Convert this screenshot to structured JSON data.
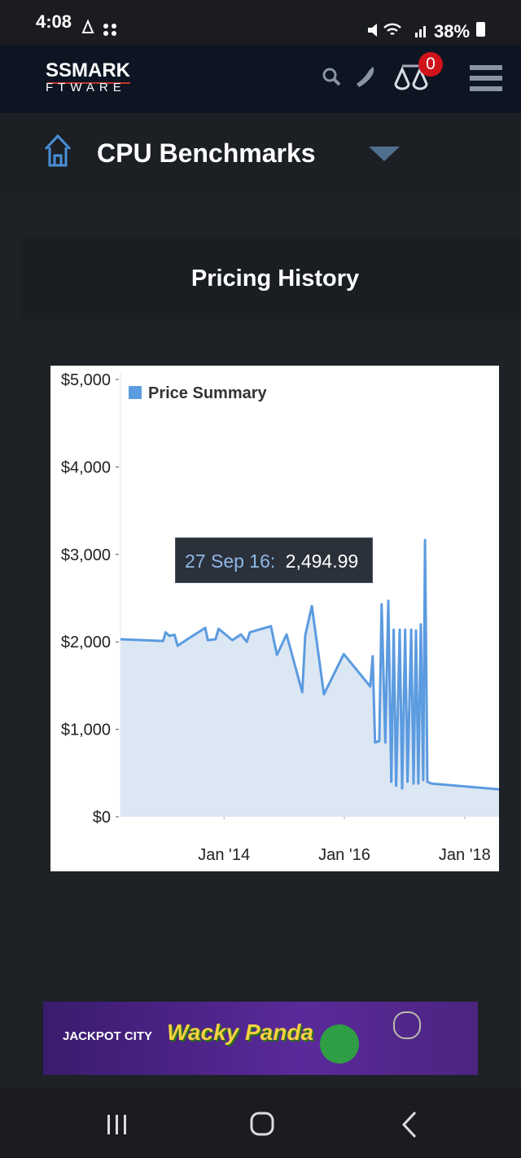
{
  "status": {
    "time": "4:08",
    "battery": "38%"
  },
  "header": {
    "logo_top": "SSMARK",
    "logo_bottom": "FTWARE",
    "cart_count": "0"
  },
  "nav": {
    "title": "CPU Benchmarks"
  },
  "section": {
    "title": "Pricing History"
  },
  "tooltip": {
    "date": "27 Sep 16:",
    "price": "2,494.99"
  },
  "ad": {
    "brand": "JACKPOT CITY",
    "game": "Wacky Panda"
  },
  "chart_data": {
    "type": "area",
    "x": [
      2012.28,
      2012.99,
      2013.03,
      2013.09,
      2013.18,
      2013.23,
      2013.39,
      2013.69,
      2013.73,
      2013.86,
      2013.91,
      2014.14,
      2014.28,
      2014.38,
      2014.43,
      2014.78,
      2014.88,
      2015.04,
      2015.3,
      2015.35,
      2015.46,
      2015.66,
      2015.99,
      2016.43,
      2016.47,
      2016.51,
      2016.58,
      2016.62,
      2016.68,
      2016.73,
      2016.78,
      2016.82,
      2016.86,
      2016.92,
      2016.96,
      2017.01,
      2017.05,
      2017.11,
      2017.15,
      2017.19,
      2017.23,
      2017.27,
      2017.31,
      2017.34,
      2017.38,
      2017.45,
      2018.57
    ],
    "series": [
      {
        "name": "Price Summary",
        "color": "#5b9be0",
        "fill_color": "#dce7f4",
        "values": [
          2030,
          2010,
          2110,
          2070,
          2080,
          1955,
          2030,
          2160,
          2020,
          2030,
          2150,
          2020,
          2085,
          2000,
          2110,
          2180,
          1850,
          2085,
          1425,
          2075,
          2410,
          1400,
          1860,
          1490,
          1835,
          850,
          865,
          2430,
          850,
          2470,
          400,
          2140,
          355,
          2140,
          325,
          2140,
          400,
          2140,
          380,
          2130,
          380,
          2200,
          420,
          3165,
          400,
          380,
          315
        ]
      }
    ],
    "xlim": [
      2012.28,
      2018.57
    ],
    "xticks": [
      {
        "value": 2014,
        "label": "Jan '14"
      },
      {
        "value": 2016,
        "label": "Jan '16"
      },
      {
        "value": 2018,
        "label": "Jan '18"
      }
    ],
    "ylim": [
      0,
      5000
    ],
    "yticks": [
      {
        "value": 0,
        "label": "$0"
      },
      {
        "value": 1000,
        "label": "$1,000"
      },
      {
        "value": 2000,
        "label": "$2,000"
      },
      {
        "value": 3000,
        "label": "$3,000"
      },
      {
        "value": 4000,
        "label": "$4,000"
      },
      {
        "value": 5000,
        "label": "$5,000"
      }
    ],
    "grid": false,
    "legend": "top-left"
  }
}
